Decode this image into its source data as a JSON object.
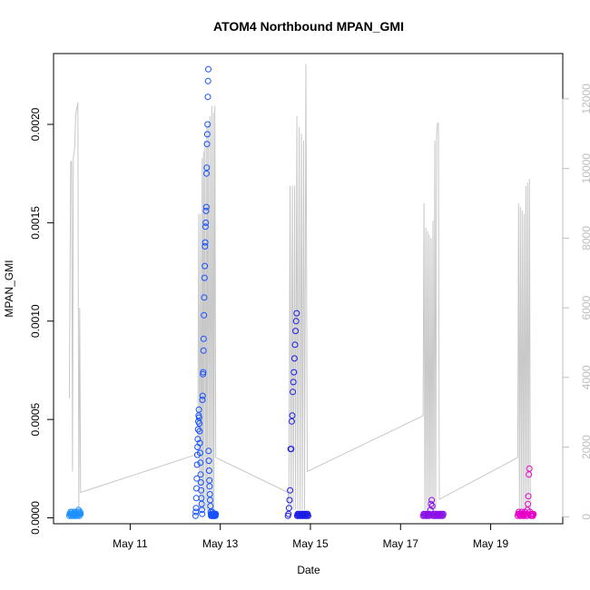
{
  "chart_data": {
    "type": "scatter",
    "title": "ATOM4 Northbound MPAN_GMI",
    "xlabel": "Date",
    "ylabel": "MPAN_GMI",
    "x_unit": "days in May",
    "xlim": [
      9.3,
      20.6
    ],
    "ylim": [
      -3e-05,
      0.00236
    ],
    "y2lim": [
      -200,
      13300
    ],
    "grid": false,
    "legend": "none",
    "x_ticks": [
      {
        "value": 11,
        "label": "May 11"
      },
      {
        "value": 13,
        "label": "May 13"
      },
      {
        "value": 15,
        "label": "May 15"
      },
      {
        "value": 17,
        "label": "May 17"
      },
      {
        "value": 19,
        "label": "May 19"
      }
    ],
    "y_ticks": [
      {
        "value": 0.0,
        "label": "0.0000"
      },
      {
        "value": 0.0005,
        "label": "0.0005"
      },
      {
        "value": 0.001,
        "label": "0.0010"
      },
      {
        "value": 0.0015,
        "label": "0.0015"
      },
      {
        "value": 0.002,
        "label": "0.0020"
      }
    ],
    "y2_ticks": [
      {
        "value": 0,
        "label": "0"
      },
      {
        "value": 2000,
        "label": "2000"
      },
      {
        "value": 4000,
        "label": "4000"
      },
      {
        "value": 6000,
        "label": "6000"
      },
      {
        "value": 8000,
        "label": "8000"
      },
      {
        "value": 10000,
        "label": "10000"
      },
      {
        "value": 12000,
        "label": "12000"
      }
    ],
    "series": [
      {
        "role": "MPAN_GMI points",
        "axis": "left",
        "marker": "open-circle",
        "groups": [
          {
            "color": "#1e90ff",
            "x_range": [
              9.65,
              9.9
            ],
            "values": [
              1e-05,
              2e-05,
              2e-05,
              3e-05,
              2e-05,
              1e-05,
              2e-05,
              3e-05,
              1e-05,
              2e-05,
              2e-05,
              1e-05,
              2e-05,
              3e-05,
              2e-05,
              1e-05,
              2e-05,
              1e-05,
              2e-05,
              3e-05,
              2e-05,
              1e-05,
              2e-05,
              3e-05,
              4e-05,
              2e-05,
              1e-05,
              2e-05,
              3e-05,
              2e-05
            ]
          },
          {
            "color": "#1652ff",
            "x_range": [
              12.45,
              12.9
            ],
            "values": [
              1e-05,
              3e-05,
              5e-05,
              0.0001,
              0.00015,
              0.0002,
              0.00027,
              0.00032,
              0.00036,
              0.0004,
              0.00045,
              0.00049,
              0.00052,
              0.00055,
              0.00051,
              0.00048,
              0.00044,
              0.00038,
              0.00033,
              0.00028,
              0.00022,
              0.00018,
              0.00014,
              0.0001,
              7e-05,
              4e-05,
              2e-05,
              0.0006,
              0.00062,
              0.00073,
              0.00074,
              0.00085,
              0.00091,
              0.00103,
              0.00112,
              0.00122,
              0.00128,
              0.00138,
              0.0014,
              0.00148,
              0.0015,
              0.00156,
              0.00158,
              0.00175,
              0.00178,
              0.0019,
              0.00195,
              0.002,
              0.00214,
              0.00222,
              0.00228,
              0.00034,
              0.00029,
              0.00024,
              0.00019,
              0.00016,
              0.00012,
              9e-05,
              6e-05,
              3e-05,
              2e-05,
              1e-05,
              1e-05,
              2e-05,
              1e-05,
              3e-05,
              1e-05,
              2e-05,
              1e-05,
              2e-05,
              1e-05,
              2e-05,
              1e-05,
              2e-05,
              1e-05,
              2e-05,
              1e-05,
              2e-05,
              1e-05,
              2e-05
            ]
          },
          {
            "color": "#1c1ce6",
            "x_range": [
              14.5,
              14.95
            ],
            "values": [
              1e-05,
              2e-05,
              5e-05,
              9e-05,
              0.00014,
              0.00035,
              0.00035,
              0.00049,
              0.00052,
              0.00064,
              0.00069,
              0.00074,
              0.00081,
              0.00088,
              0.00095,
              0.001,
              0.00104,
              1e-05,
              2e-05,
              1e-05,
              2e-05,
              1e-05,
              2e-05,
              1e-05,
              2e-05,
              1e-05,
              2e-05,
              1e-05,
              2e-05,
              1e-05,
              2e-05,
              1e-05,
              2e-05,
              1e-05,
              2e-05,
              1e-05,
              2e-05,
              1e-05
            ]
          },
          {
            "color": "#8a10e6",
            "x_range": [
              17.5,
              17.95
            ],
            "values": [
              1e-05,
              2e-05,
              1e-05,
              2e-05,
              1e-05,
              2e-05,
              1e-05,
              2e-05,
              1e-05,
              2e-05,
              1e-05,
              2e-05,
              4e-05,
              7e-05,
              9e-05,
              6e-05,
              1e-05,
              2e-05,
              1e-05,
              2e-05,
              1e-05,
              2e-05,
              1e-05,
              2e-05,
              1e-05,
              2e-05,
              1e-05,
              2e-05,
              1e-05,
              2e-05,
              1e-05,
              2e-05,
              1e-05,
              2e-05
            ]
          },
          {
            "color": "#e600c8",
            "x_range": [
              19.6,
              19.95
            ],
            "values": [
              1e-05,
              2e-05,
              3e-05,
              2e-05,
              1e-05,
              2e-05,
              1e-05,
              2e-05,
              3e-05,
              2e-05,
              1e-05,
              2e-05,
              1e-05,
              2e-05,
              3e-05,
              2e-05,
              1e-05,
              2e-05,
              1e-05,
              4e-05,
              7e-05,
              0.00011,
              0.00022,
              0.00025,
              3e-05,
              2e-05,
              1e-05,
              2e-05,
              1e-05,
              2e-05,
              1e-05,
              2e-05
            ]
          }
        ]
      },
      {
        "role": "secondary trace",
        "axis": "right",
        "color": "#c8c8c8",
        "type": "line",
        "points": [
          [
            9.65,
            3400
          ],
          [
            9.68,
            10200
          ],
          [
            9.7,
            10200
          ],
          [
            9.72,
            1300
          ],
          [
            9.74,
            10300
          ],
          [
            9.77,
            10600
          ],
          [
            9.79,
            11500
          ],
          [
            9.81,
            11700
          ],
          [
            9.83,
            11800
          ],
          [
            9.84,
            11900
          ],
          [
            9.86,
            200
          ],
          [
            9.88,
            6000
          ],
          [
            9.9,
            700
          ],
          [
            12.5,
            1800
          ],
          [
            12.52,
            8700
          ],
          [
            12.54,
            200
          ],
          [
            12.56,
            8700
          ],
          [
            12.58,
            200
          ],
          [
            12.6,
            10300
          ],
          [
            12.61,
            200
          ],
          [
            12.63,
            10500
          ],
          [
            12.64,
            200
          ],
          [
            12.66,
            10800
          ],
          [
            12.68,
            200
          ],
          [
            12.7,
            11200
          ],
          [
            12.71,
            200
          ],
          [
            12.73,
            11300
          ],
          [
            12.75,
            200
          ],
          [
            12.77,
            11500
          ],
          [
            12.79,
            200
          ],
          [
            12.81,
            11800
          ],
          [
            12.83,
            200
          ],
          [
            12.85,
            11600
          ],
          [
            12.86,
            200
          ],
          [
            12.88,
            11800
          ],
          [
            12.9,
            1700
          ],
          [
            14.5,
            700
          ],
          [
            14.52,
            200
          ],
          [
            14.55,
            9500
          ],
          [
            14.57,
            200
          ],
          [
            14.6,
            9500
          ],
          [
            14.62,
            200
          ],
          [
            14.65,
            9500
          ],
          [
            14.67,
            200
          ],
          [
            14.7,
            11500
          ],
          [
            14.72,
            200
          ],
          [
            14.75,
            11200
          ],
          [
            14.77,
            200
          ],
          [
            14.8,
            11000
          ],
          [
            14.82,
            200
          ],
          [
            14.85,
            10800
          ],
          [
            14.87,
            200
          ],
          [
            14.9,
            13000
          ],
          [
            14.93,
            1300
          ],
          [
            17.5,
            2900
          ],
          [
            17.52,
            9000
          ],
          [
            17.54,
            200
          ],
          [
            17.56,
            8300
          ],
          [
            17.58,
            200
          ],
          [
            17.6,
            8200
          ],
          [
            17.62,
            200
          ],
          [
            17.64,
            8100
          ],
          [
            17.66,
            200
          ],
          [
            17.68,
            8000
          ],
          [
            17.7,
            200
          ],
          [
            17.72,
            8500
          ],
          [
            17.74,
            200
          ],
          [
            17.76,
            10800
          ],
          [
            17.78,
            200
          ],
          [
            17.8,
            11000
          ],
          [
            17.82,
            11300
          ],
          [
            17.84,
            11300
          ],
          [
            17.86,
            500
          ],
          [
            19.6,
            1700
          ],
          [
            19.62,
            9000
          ],
          [
            19.64,
            200
          ],
          [
            19.66,
            8900
          ],
          [
            19.68,
            200
          ],
          [
            19.7,
            8800
          ],
          [
            19.72,
            200
          ],
          [
            19.74,
            8700
          ],
          [
            19.76,
            200
          ],
          [
            19.78,
            9500
          ],
          [
            19.8,
            200
          ],
          [
            19.82,
            9600
          ],
          [
            19.84,
            200
          ],
          [
            19.86,
            9700
          ],
          [
            19.88,
            200
          ]
        ]
      }
    ]
  }
}
